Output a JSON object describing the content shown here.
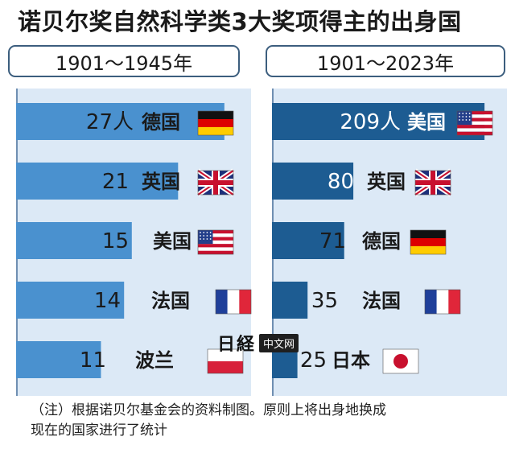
{
  "header": {
    "title": "诺贝尔奖自然科学类3大奖项得主的出身国",
    "note_line1": "（注）根据诺贝尔基金会的资料制图。原则上将出身地换成",
    "note_line2": "现在的国家进行了统计"
  },
  "watermark": {
    "logo": "日経",
    "label": "中文网"
  },
  "colors": {
    "left_bar": "#4a91cf",
    "right_bar": "#1d5c92",
    "panel_bg": "#dce9f6"
  },
  "chart_data": [
    {
      "type": "bar",
      "orientation": "horizontal",
      "period": "1901～1945年",
      "categories": [
        "德国",
        "英国",
        "美国",
        "法国",
        "波兰"
      ],
      "values": [
        27,
        21,
        15,
        14,
        11
      ],
      "value_labels": [
        "27人",
        "21",
        "15",
        "14",
        "11"
      ],
      "flags": [
        "germany-flag",
        "uk-flag",
        "usa-flag",
        "france-flag",
        "poland-flag"
      ],
      "xlim": [
        0,
        29
      ],
      "grid": false,
      "legend": "none"
    },
    {
      "type": "bar",
      "orientation": "horizontal",
      "period": "1901～2023年",
      "categories": [
        "美国",
        "英国",
        "德国",
        "法国",
        "日本"
      ],
      "values": [
        209,
        80,
        71,
        35,
        25
      ],
      "value_labels": [
        "209人",
        "80",
        "71",
        "35",
        "25"
      ],
      "flags": [
        "usa-flag",
        "uk-flag",
        "germany-flag",
        "france-flag",
        "japan-flag"
      ],
      "xlim": [
        0,
        220
      ],
      "grid": false,
      "legend": "none"
    }
  ]
}
